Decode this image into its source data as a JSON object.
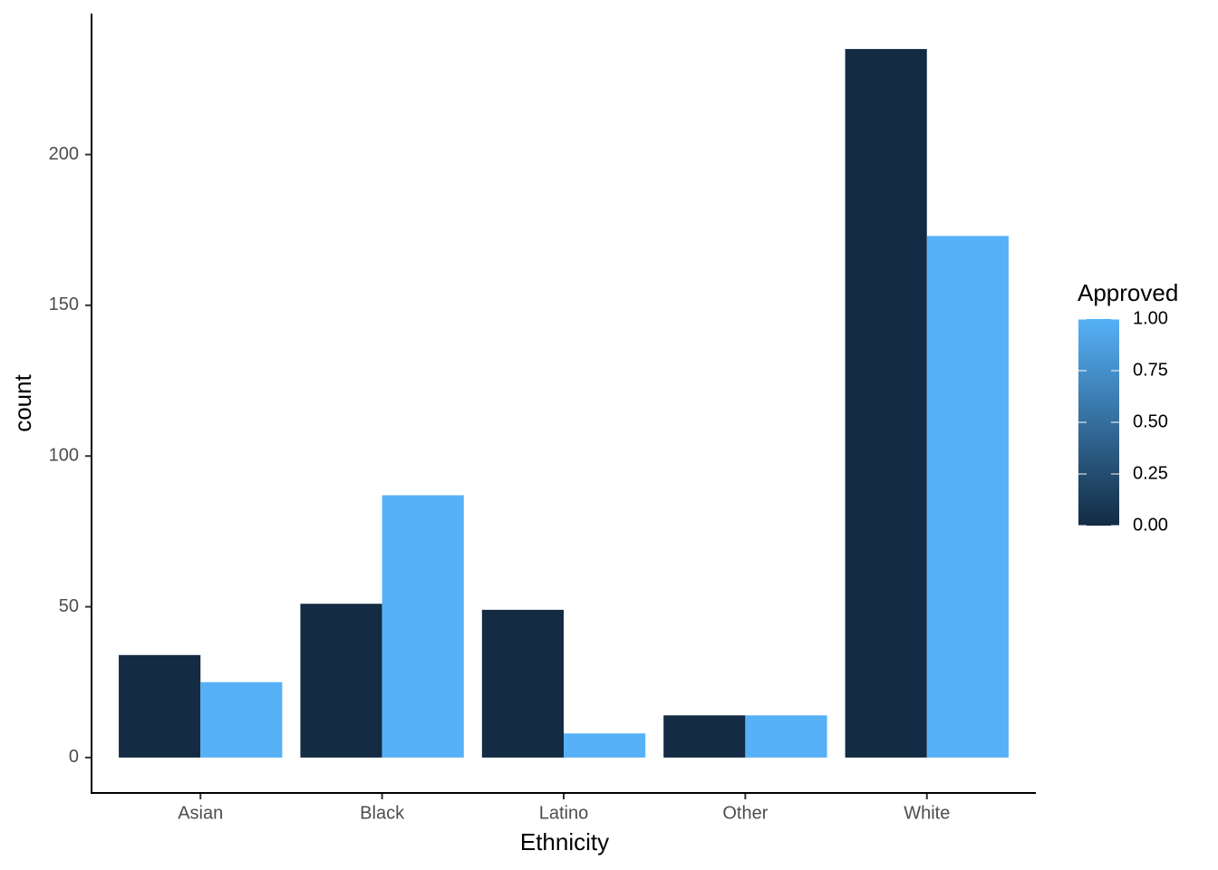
{
  "chart_data": {
    "type": "bar",
    "x_label": "Ethnicity",
    "y_label": "count",
    "categories": [
      "Asian",
      "Black",
      "Latino",
      "Other",
      "White"
    ],
    "series": [
      {
        "approved": 0,
        "values": [
          34,
          51,
          49,
          14,
          235
        ]
      },
      {
        "approved": 1,
        "values": [
          25,
          87,
          8,
          14,
          173
        ]
      }
    ],
    "ylim": [
      -11.75,
      246.75
    ],
    "yticks": [
      0,
      50,
      100,
      150,
      200
    ],
    "legend": {
      "title": "Approved",
      "colors": [
        "#132B43",
        "#56B1F7"
      ],
      "ticks": [
        {
          "value": 0,
          "label": "0.00"
        },
        {
          "value": 0.25,
          "label": "0.25"
        },
        {
          "value": 0.5,
          "label": "0.50"
        },
        {
          "value": 0.75,
          "label": "0.75"
        },
        {
          "value": 1,
          "label": "1.00"
        }
      ]
    }
  }
}
